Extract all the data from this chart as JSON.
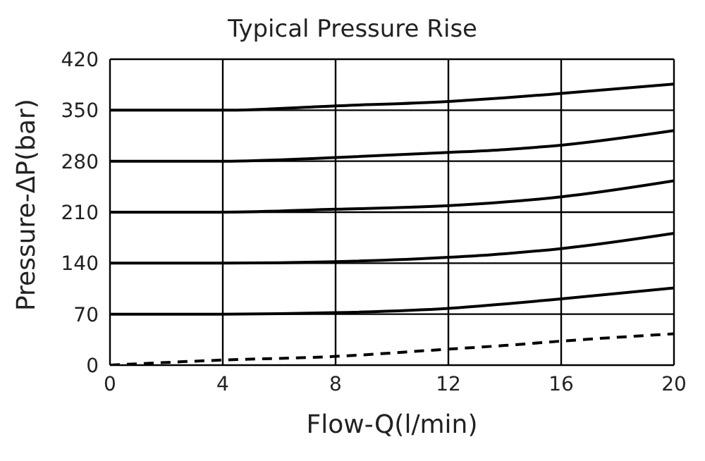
{
  "chart_data": {
    "type": "line",
    "title": "Typical Pressure Rise",
    "xlabel": "Flow-Q(l/min)",
    "ylabel": "Pressure-ΔP(bar)",
    "x": [
      0,
      4,
      8,
      12,
      14,
      16,
      20
    ],
    "xlim": [
      0,
      20
    ],
    "xticks": [
      0,
      4,
      8,
      12,
      16,
      20
    ],
    "ylim": [
      0,
      420
    ],
    "yticks": [
      0,
      70,
      140,
      210,
      280,
      350,
      420
    ],
    "grid": true,
    "legend": false,
    "marker": "none",
    "series": [
      {
        "color": "#000000",
        "values": [
          350,
          350,
          356,
          362,
          367,
          373,
          386
        ]
      },
      {
        "color": "#000000",
        "values": [
          280,
          280,
          285,
          292,
          296,
          302,
          322
        ]
      },
      {
        "color": "#000000",
        "values": [
          210,
          210,
          214,
          219,
          224,
          231,
          253
        ]
      },
      {
        "color": "#000000",
        "values": [
          140,
          140,
          142,
          148,
          153,
          160,
          181
        ]
      },
      {
        "color": "#000000",
        "values": [
          70,
          70,
          72,
          78,
          84,
          91,
          106
        ]
      },
      {
        "color": "#000000",
        "line_style": "dashed",
        "values": [
          0,
          7,
          12,
          22,
          27,
          33,
          43
        ]
      }
    ]
  }
}
